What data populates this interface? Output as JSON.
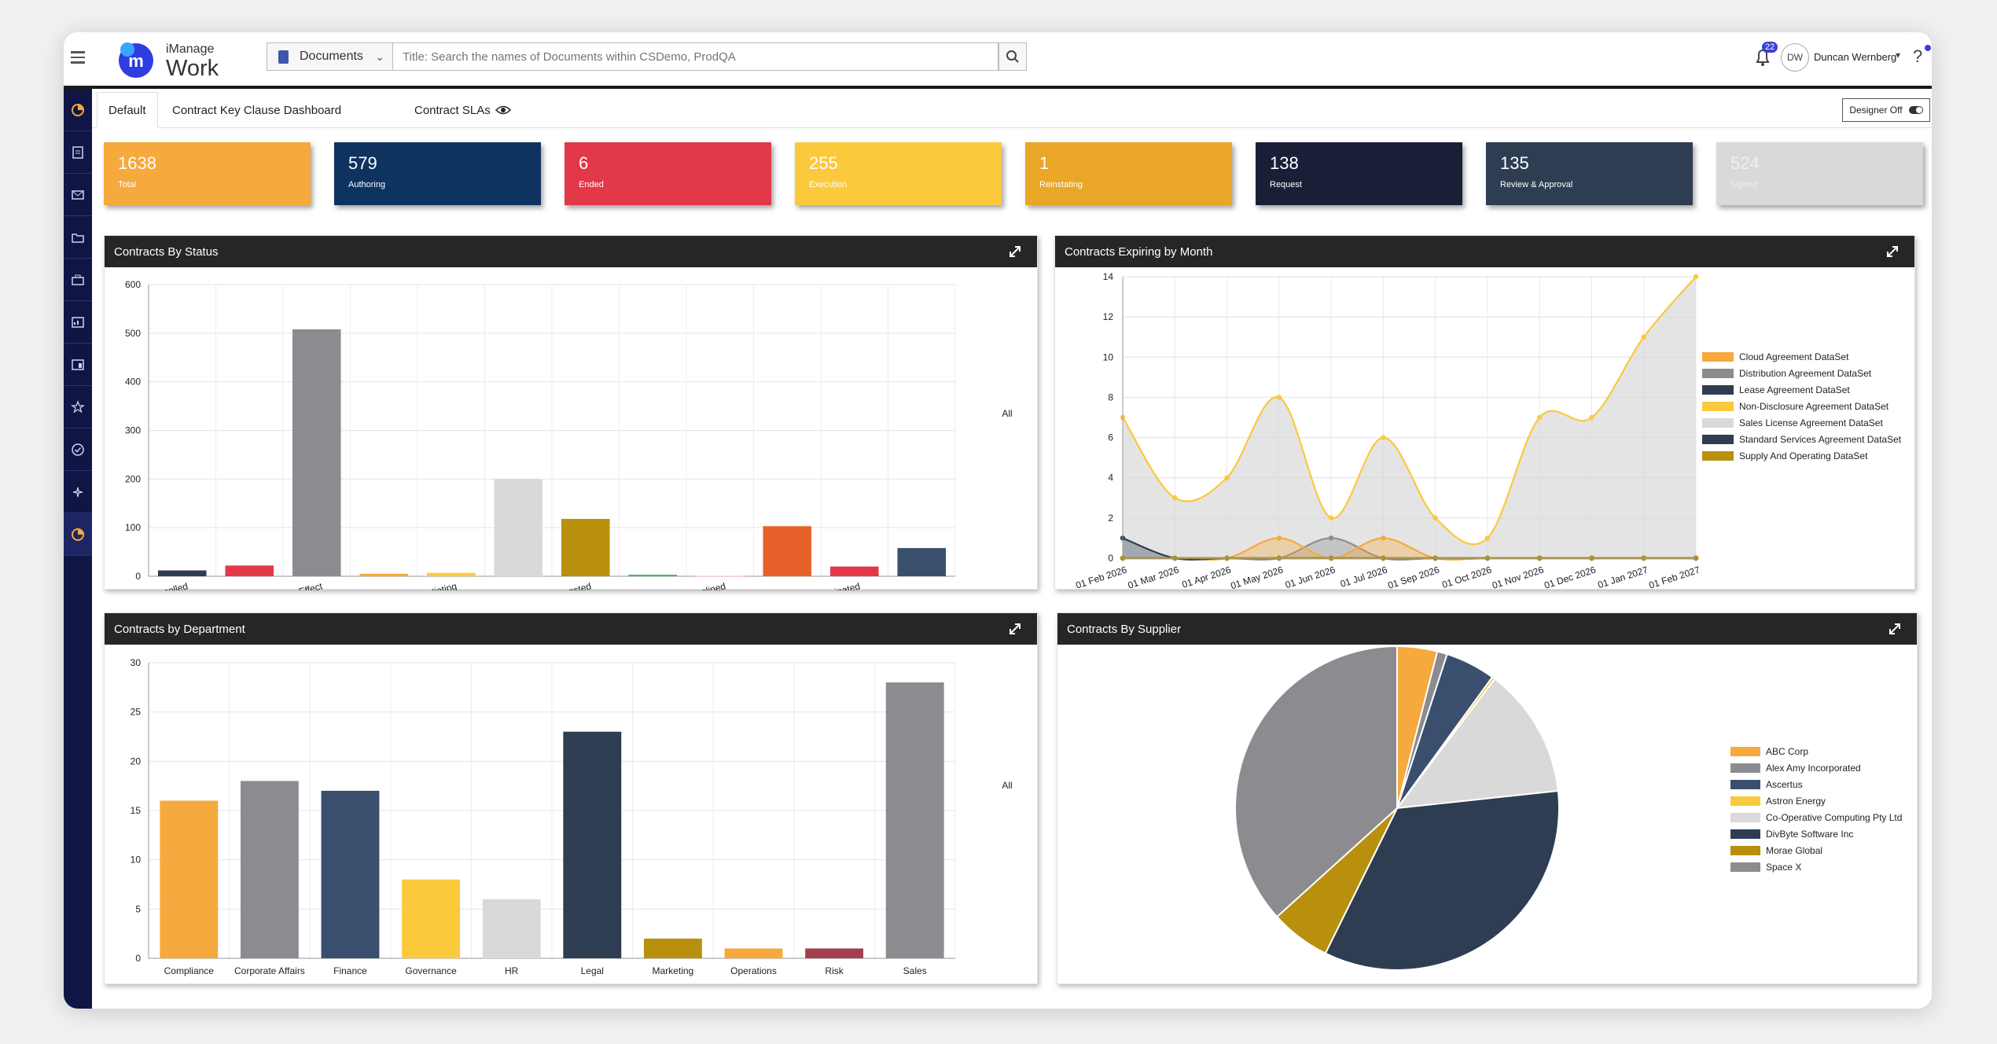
{
  "topbar": {
    "logo_brand": "iManage",
    "logo_product": "Work",
    "search_scope": "Documents",
    "search_placeholder": "Title: Search the names of Documents within CSDemo, ProdQA",
    "notification_count": "22",
    "user_initials": "DW",
    "user_name": "Duncan Wernberg"
  },
  "tabs": [
    {
      "label": "Default"
    },
    {
      "label": "Contract Key Clause Dashboard"
    },
    {
      "label": "Contract SLAs"
    }
  ],
  "designer_label": "Designer Off",
  "kpis": [
    {
      "value": "1638",
      "label": "Total",
      "color": "#f6a93d"
    },
    {
      "value": "579",
      "label": "Authoring",
      "color": "#0e3360"
    },
    {
      "value": "6",
      "label": "Ended",
      "color": "#e23848"
    },
    {
      "value": "255",
      "label": "Execution",
      "color": "#fbc93c"
    },
    {
      "value": "1",
      "label": "Reinstating",
      "color": "#eaa626"
    },
    {
      "value": "138",
      "label": "Request",
      "color": "#1a1f38"
    },
    {
      "value": "135",
      "label": "Review & Approval",
      "color": "#2e3d52"
    },
    {
      "value": "524",
      "label": "Signed",
      "color": "#d9d9d9"
    }
  ],
  "panels": {
    "status": {
      "title": "Contracts By Status",
      "filter": "All"
    },
    "expiring": {
      "title": "Contracts Expiring by Month"
    },
    "department": {
      "title": "Contracts by Department",
      "filter": "All"
    },
    "supplier": {
      "title": "Contracts By Supplier"
    }
  },
  "chart_data": [
    {
      "type": "bar",
      "title": "Contracts By Status",
      "categories": [
        "Cancelled",
        "Expired",
        "In Effect",
        "In Effect - Expiring Soon",
        "Negotiating",
        "Ready for Signing",
        "Requested",
        "Review - Approved",
        "Review - Declined",
        "Reviewing",
        "Terminated",
        "Waiting for Signatures"
      ],
      "values": [
        12,
        22,
        508,
        5,
        7,
        200,
        118,
        3,
        1,
        103,
        20,
        58
      ],
      "colors": [
        "#2e3d52",
        "#e23848",
        "#8c8c90",
        "#f6a93d",
        "#fbc93c",
        "#d9d9d9",
        "#b8900e",
        "#39b54a",
        "#f4c6cf",
        "#e6622a",
        "#e23848",
        "#3a4f6e"
      ],
      "ylim": [
        0,
        600
      ],
      "yticks": [
        0,
        100,
        200,
        300,
        400,
        500,
        600
      ],
      "grid": true
    },
    {
      "type": "area",
      "title": "Contracts Expiring by Month",
      "x": [
        "01 Feb 2026",
        "01 Mar 2026",
        "01 Apr 2026",
        "01 May 2026",
        "01 Jun 2026",
        "01 Jul 2026",
        "01 Sep 2026",
        "01 Oct 2026",
        "01 Nov 2026",
        "01 Dec 2026",
        "01 Jan 2027",
        "01 Feb 2027"
      ],
      "series": [
        {
          "name": "Cloud Agreement DataSet",
          "color": "#f6a93d",
          "values": [
            0,
            0,
            0,
            1,
            0,
            1,
            0,
            0,
            0,
            0,
            0,
            0
          ]
        },
        {
          "name": "Distribution Agreement DataSet",
          "color": "#8c8c90",
          "values": [
            0,
            0,
            0,
            0,
            1,
            0,
            0,
            0,
            0,
            0,
            0,
            0
          ]
        },
        {
          "name": "Lease Agreement DataSet",
          "color": "#2e3d52",
          "values": [
            1,
            0,
            0,
            0,
            0,
            0,
            0,
            0,
            0,
            0,
            0,
            0
          ]
        },
        {
          "name": "Non-Disclosure Agreement DataSet",
          "color": "#fbc93c",
          "values": [
            7,
            3,
            4,
            8,
            2,
            6,
            2,
            1,
            7,
            7,
            11,
            14
          ]
        },
        {
          "name": "Sales License Agreement DataSet",
          "color": "#d9d9d9",
          "values": [
            0,
            0,
            0,
            0,
            0,
            0,
            0,
            0,
            0,
            0,
            0,
            0
          ]
        },
        {
          "name": "Standard Services Agreement DataSet",
          "color": "#2e3d52",
          "values": [
            0,
            0,
            0,
            0,
            0,
            0,
            0,
            0,
            0,
            0,
            0,
            0
          ]
        },
        {
          "name": "Supply And Operating DataSet",
          "color": "#b8900e",
          "values": [
            0,
            0,
            0,
            0,
            0,
            0,
            0,
            0,
            0,
            0,
            0,
            0
          ]
        }
      ],
      "ylim": [
        0,
        14
      ],
      "yticks": [
        0,
        2,
        4,
        6,
        8,
        10,
        12,
        14
      ],
      "legend": "right",
      "grid": true
    },
    {
      "type": "bar",
      "title": "Contracts by Department",
      "categories": [
        "Compliance",
        "Corporate Affairs",
        "Finance",
        "Governance",
        "HR",
        "Legal",
        "Marketing",
        "Operations",
        "Risk",
        "Sales"
      ],
      "values": [
        16,
        18,
        17,
        8,
        6,
        23,
        2,
        1,
        1,
        28
      ],
      "colors": [
        "#f6a93d",
        "#8c8c90",
        "#3a4f6e",
        "#fbc93c",
        "#d9d9d9",
        "#2e3d52",
        "#b8900e",
        "#f6a93d",
        "#a0404e",
        "#8c8c90"
      ],
      "ylim": [
        0,
        30
      ],
      "yticks": [
        0,
        5,
        10,
        15,
        20,
        25,
        30
      ],
      "grid": true
    },
    {
      "type": "pie",
      "title": "Contracts By Supplier",
      "slices": [
        {
          "name": "ABC Corp",
          "value": 4,
          "color": "#f6a93d"
        },
        {
          "name": "Alex Amy Incorporated",
          "value": 1,
          "color": "#8c8c90"
        },
        {
          "name": "Ascertus",
          "value": 5,
          "color": "#3a4f6e"
        },
        {
          "name": "Astron Energy",
          "value": 0.3,
          "color": "#fbc93c"
        },
        {
          "name": "Co-Operative Computing Pty Ltd",
          "value": 13,
          "color": "#d9d9d9"
        },
        {
          "name": "DivByte Software Inc",
          "value": 34,
          "color": "#2e3d52"
        },
        {
          "name": "Morae Global",
          "value": 6,
          "color": "#b8900e"
        },
        {
          "name": "Space X",
          "value": 36.7,
          "color": "#8c8c90"
        }
      ],
      "legend": "right"
    }
  ]
}
